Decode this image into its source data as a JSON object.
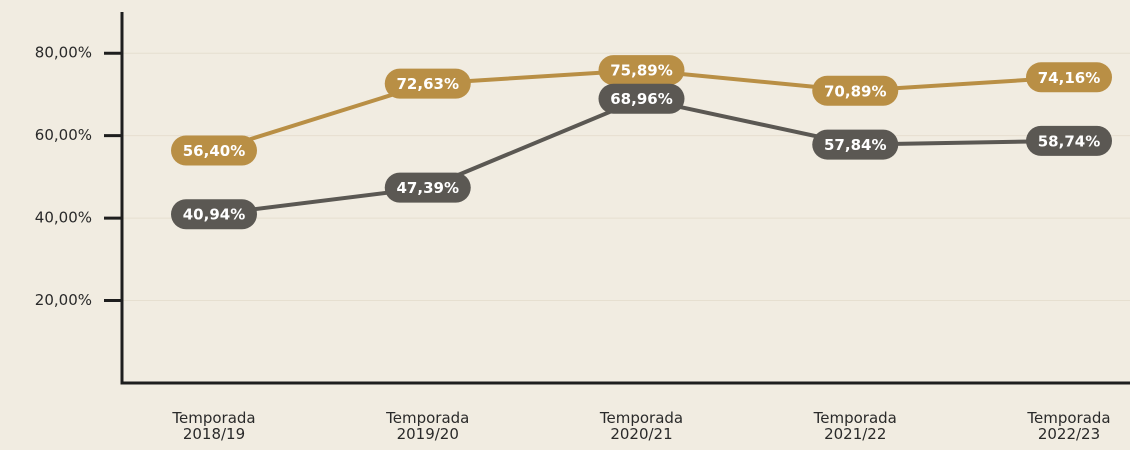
{
  "chart_data": {
    "type": "line",
    "categories": [
      "Temporada 2018/19",
      "Temporada 2019/20",
      "Temporada 2020/21",
      "Temporada 2021/22",
      "Temporada 2022/23"
    ],
    "series": [
      {
        "color": "#b98f45",
        "values": [
          56.4,
          72.63,
          75.89,
          70.89,
          74.16
        ],
        "value_labels": [
          "56,40%",
          "72,63%",
          "75,89%",
          "70,89%",
          "74,16%"
        ]
      },
      {
        "color": "#5b5853",
        "values": [
          40.94,
          47.39,
          68.96,
          57.84,
          58.74
        ],
        "value_labels": [
          "40,94%",
          "47,39%",
          "68,96%",
          "57,84%",
          "58,74%"
        ]
      }
    ],
    "ylim": [
      0,
      90
    ],
    "yticks": [
      {
        "value": 20,
        "label": "20,00%"
      },
      {
        "value": 40,
        "label": "40,00%"
      },
      {
        "value": 60,
        "label": "60,00%"
      },
      {
        "value": 80,
        "label": "80,00%"
      }
    ],
    "grid": true
  }
}
